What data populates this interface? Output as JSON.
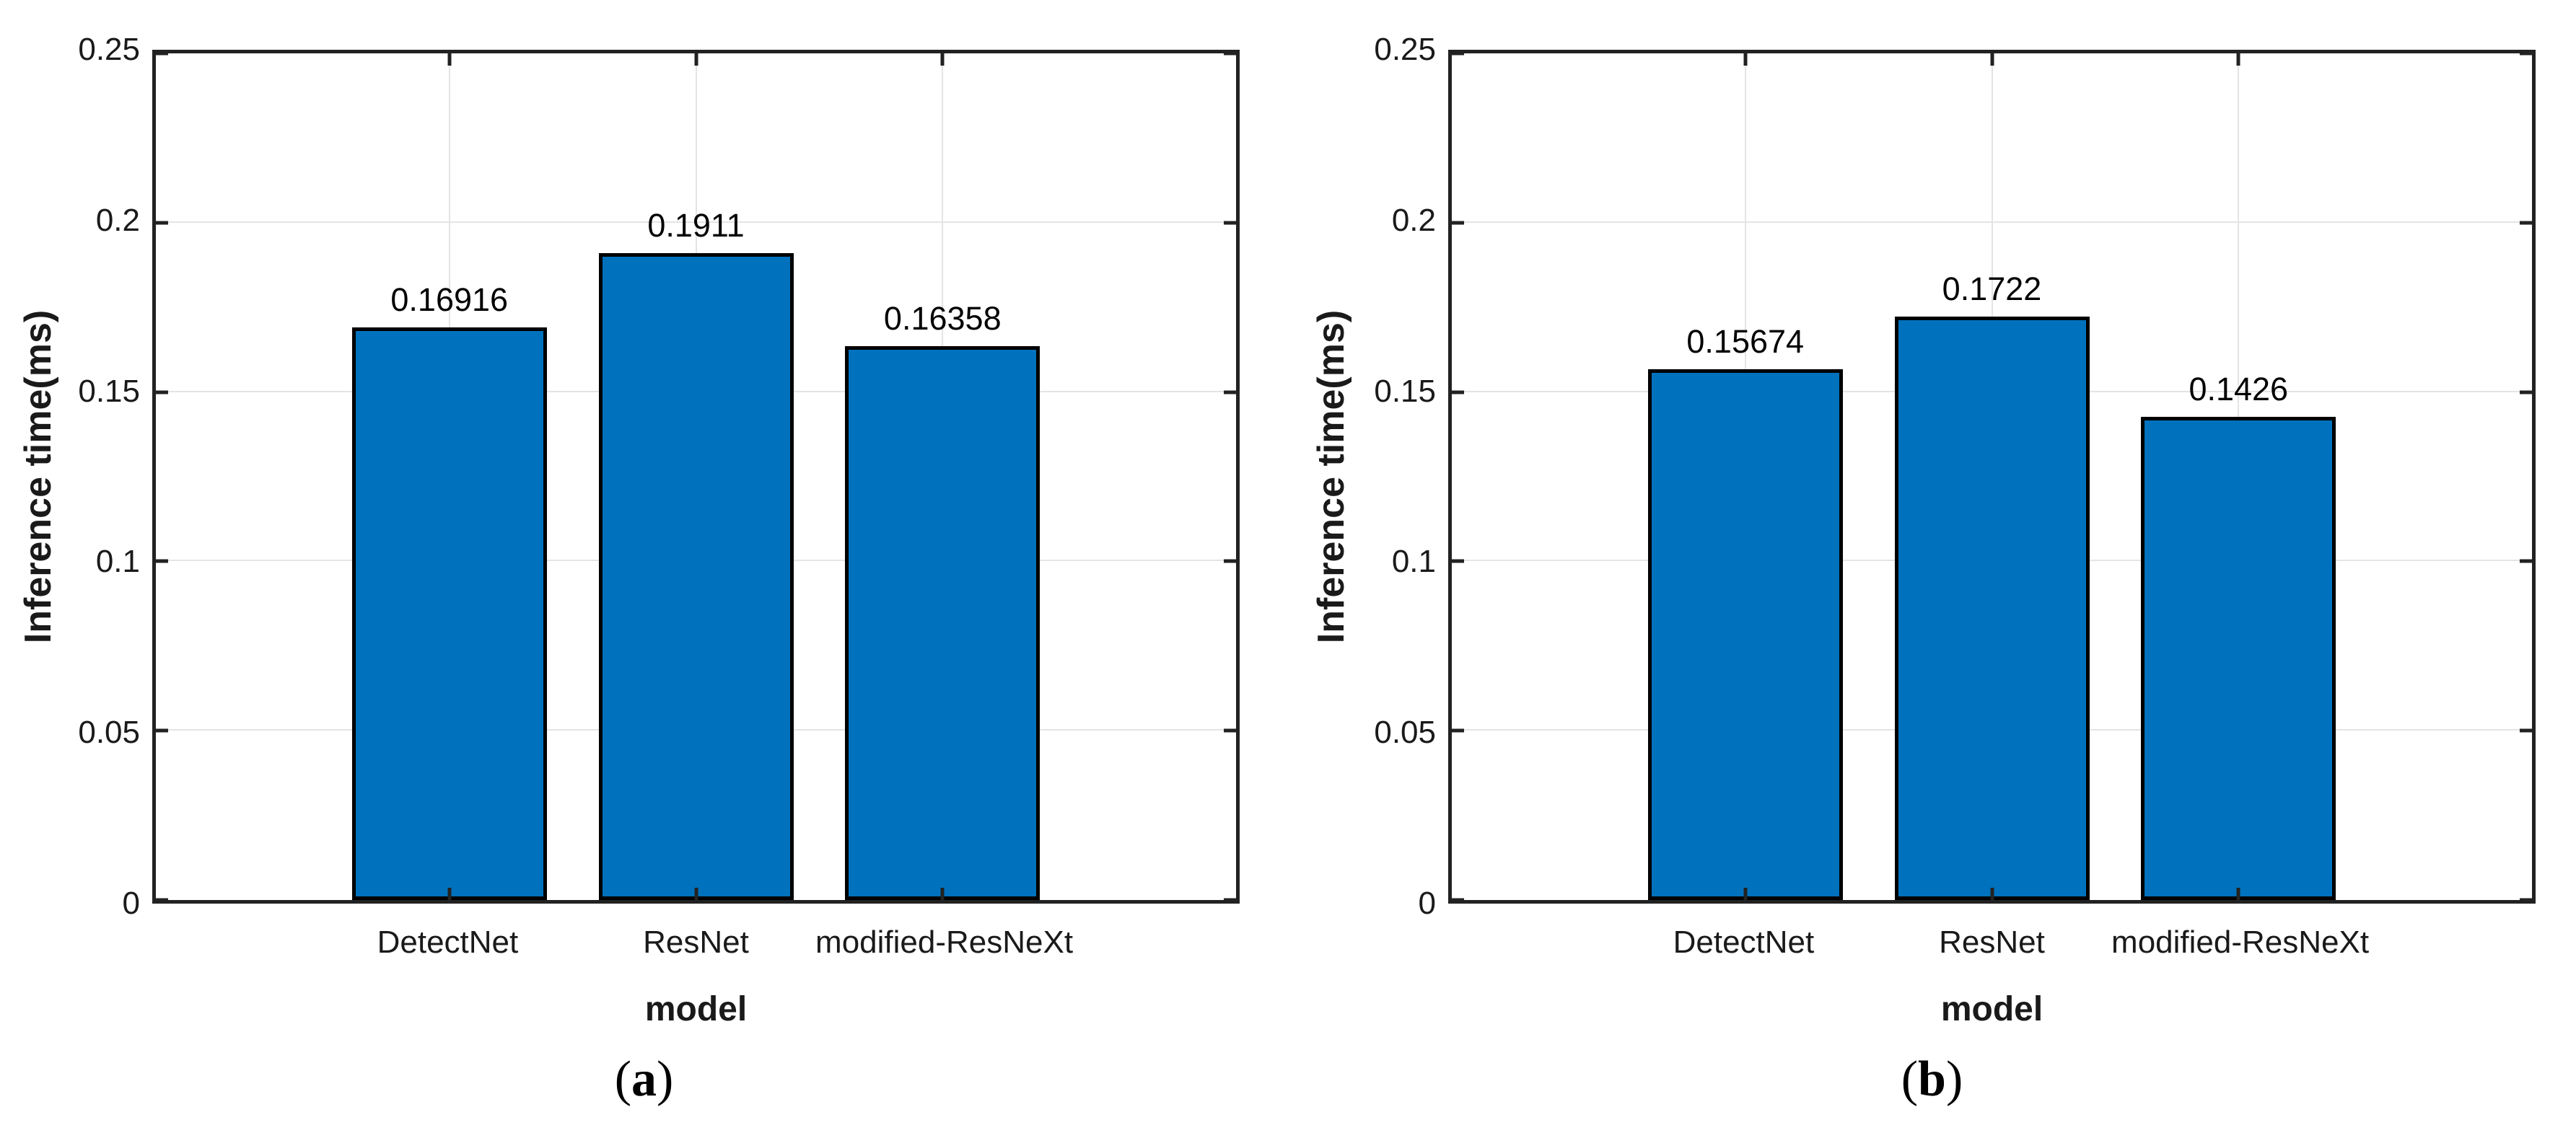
{
  "style": {
    "background": "#ffffff",
    "bar_fill": "#0072BD",
    "bar_edge": "#000000",
    "axis_color": "#222222",
    "grid_color": "#e4e4e4",
    "text_color": "#1a1a1a"
  },
  "chart_data": [
    {
      "type": "bar",
      "panel": "a",
      "caption": {
        "open": "(",
        "letter": "a",
        "close": ")"
      },
      "xlabel": "model",
      "ylabel": "Inference time(ms)",
      "categories": [
        "DetectNet",
        "ResNet",
        "modified-ResNeXt"
      ],
      "x": [
        1,
        2,
        3
      ],
      "values": [
        0.16916,
        0.1911,
        0.16358
      ],
      "value_labels": [
        "0.16916",
        "0.1911",
        "0.16358"
      ],
      "bar_width": 0.79,
      "xlim": [
        -0.19,
        4.19
      ],
      "ylim": [
        0,
        0.25
      ],
      "yticks": [
        0,
        0.05,
        0.1,
        0.15,
        0.2,
        0.25
      ],
      "ytick_labels": [
        "0",
        "0.05",
        "0.1",
        "0.15",
        "0.2",
        "0.25"
      ],
      "grid": "on",
      "box": "on",
      "legend": "none"
    },
    {
      "type": "bar",
      "panel": "b",
      "caption": {
        "open": "(",
        "letter": "b",
        "close": ")"
      },
      "xlabel": "model",
      "ylabel": "Inference time(ms)",
      "categories": [
        "DetectNet",
        "ResNet",
        "modified-ResNeXt"
      ],
      "x": [
        1,
        2,
        3
      ],
      "values": [
        0.15674,
        0.1722,
        0.1426
      ],
      "value_labels": [
        "0.15674",
        "0.1722",
        "0.1426"
      ],
      "bar_width": 0.79,
      "xlim": [
        -0.19,
        4.19
      ],
      "ylim": [
        0,
        0.25
      ],
      "yticks": [
        0,
        0.05,
        0.1,
        0.15,
        0.2,
        0.25
      ],
      "ytick_labels": [
        "0",
        "0.05",
        "0.1",
        "0.15",
        "0.2",
        "0.25"
      ],
      "grid": "on",
      "box": "on",
      "legend": "none"
    }
  ]
}
